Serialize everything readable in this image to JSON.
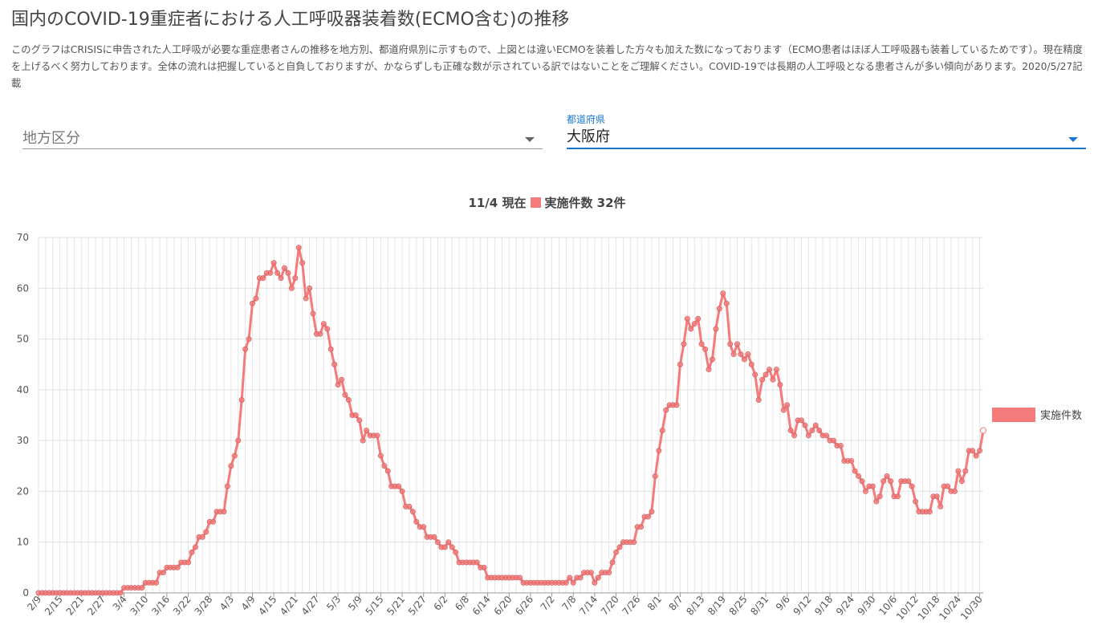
{
  "page": {
    "title": "国内のCOVID-19重症者における人工呼吸器装着数(ECMO含む)の推移",
    "description": "このグラフはCRISISに申告された人工呼吸が必要な重症患者さんの推移を地方別、都道府県別に示すもので、上図とは違いECMOを装着した方々も加えた数になっております（ECMO患者はほぼ人工呼吸器も装着しているためです）。現在精度を上げるべく努力しております。全体の流れは把握していると自負しておりますが、かならずしも正確な数が示されている訳ではないことをご理解ください。COVID-19では長期の人工呼吸となる患者さんが多い傾向があります。2020/5/27記載"
  },
  "filters": {
    "region": {
      "placeholder": "地方区分",
      "value": ""
    },
    "prefecture": {
      "label": "都道府県",
      "value": "大阪府"
    }
  },
  "colors": {
    "series": "#f47b7b",
    "accent": "#1976d2"
  },
  "chart_header": {
    "date": "11/4 現在",
    "summary": "実施件数 32件"
  },
  "chart_data": {
    "type": "line",
    "title": "11/4 現在 実施件数 32件",
    "xlabel": "",
    "ylabel": "",
    "ylim": [
      0,
      70
    ],
    "yticks": [
      0,
      10,
      20,
      30,
      40,
      50,
      60,
      70
    ],
    "grid": true,
    "legend": "right",
    "x_start": "2/9",
    "x_end": "11/4",
    "xtick_labels": [
      "2/9",
      "2/15",
      "2/21",
      "2/27",
      "3/4",
      "3/10",
      "3/16",
      "3/22",
      "3/28",
      "4/3",
      "4/9",
      "4/15",
      "4/21",
      "4/27",
      "5/3",
      "5/9",
      "5/15",
      "5/21",
      "5/27",
      "6/2",
      "6/8",
      "6/14",
      "6/20",
      "6/26",
      "7/2",
      "7/8",
      "7/14",
      "7/20",
      "7/26",
      "8/1",
      "8/7",
      "8/13",
      "8/19",
      "8/25",
      "8/31",
      "9/6",
      "9/12",
      "9/18",
      "9/24",
      "9/30",
      "10/6",
      "10/12",
      "10/18",
      "10/24",
      "10/30"
    ],
    "series": [
      {
        "name": "実施件数",
        "values": [
          0,
          0,
          0,
          0,
          0,
          0,
          0,
          0,
          0,
          0,
          0,
          0,
          0,
          0,
          0,
          0,
          0,
          0,
          0,
          0,
          0,
          0,
          0,
          0,
          1,
          1,
          1,
          1,
          1,
          1,
          2,
          2,
          2,
          2,
          4,
          4,
          5,
          5,
          5,
          5,
          6,
          6,
          6,
          8,
          9,
          11,
          11,
          12,
          14,
          14,
          16,
          16,
          16,
          21,
          25,
          27,
          30,
          38,
          48,
          50,
          57,
          58,
          62,
          62,
          63,
          63,
          65,
          63,
          62,
          64,
          63,
          60,
          62,
          68,
          65,
          58,
          60,
          55,
          51,
          51,
          53,
          52,
          48,
          45,
          41,
          42,
          39,
          38,
          35,
          35,
          34,
          30,
          32,
          31,
          31,
          31,
          27,
          25,
          24,
          21,
          21,
          21,
          20,
          17,
          17,
          16,
          14,
          13,
          13,
          11,
          11,
          11,
          10,
          9,
          9,
          10,
          9,
          8,
          6,
          6,
          6,
          6,
          6,
          6,
          5,
          5,
          3,
          3,
          3,
          3,
          3,
          3,
          3,
          3,
          3,
          3,
          2,
          2,
          2,
          2,
          2,
          2,
          2,
          2,
          2,
          2,
          2,
          2,
          2,
          3,
          2,
          3,
          3,
          4,
          4,
          4,
          2,
          3,
          4,
          4,
          4,
          6,
          8,
          9,
          10,
          10,
          10,
          10,
          13,
          13,
          15,
          15,
          16,
          23,
          28,
          32,
          36,
          37,
          37,
          37,
          45,
          49,
          54,
          52,
          53,
          54,
          49,
          48,
          44,
          46,
          52,
          56,
          59,
          57,
          49,
          47,
          49,
          47,
          46,
          47,
          45,
          43,
          38,
          42,
          43,
          44,
          42,
          44,
          41,
          36,
          37,
          32,
          31,
          34,
          34,
          33,
          31,
          32,
          33,
          32,
          31,
          31,
          30,
          30,
          29,
          29,
          26,
          26,
          26,
          24,
          23,
          22,
          20,
          21,
          21,
          18,
          19,
          22,
          23,
          22,
          19,
          19,
          22,
          22,
          22,
          21,
          18,
          16,
          16,
          16,
          16,
          19,
          19,
          17,
          21,
          21,
          20,
          20,
          24,
          22,
          24,
          28,
          28,
          27,
          28,
          32
        ]
      }
    ]
  }
}
